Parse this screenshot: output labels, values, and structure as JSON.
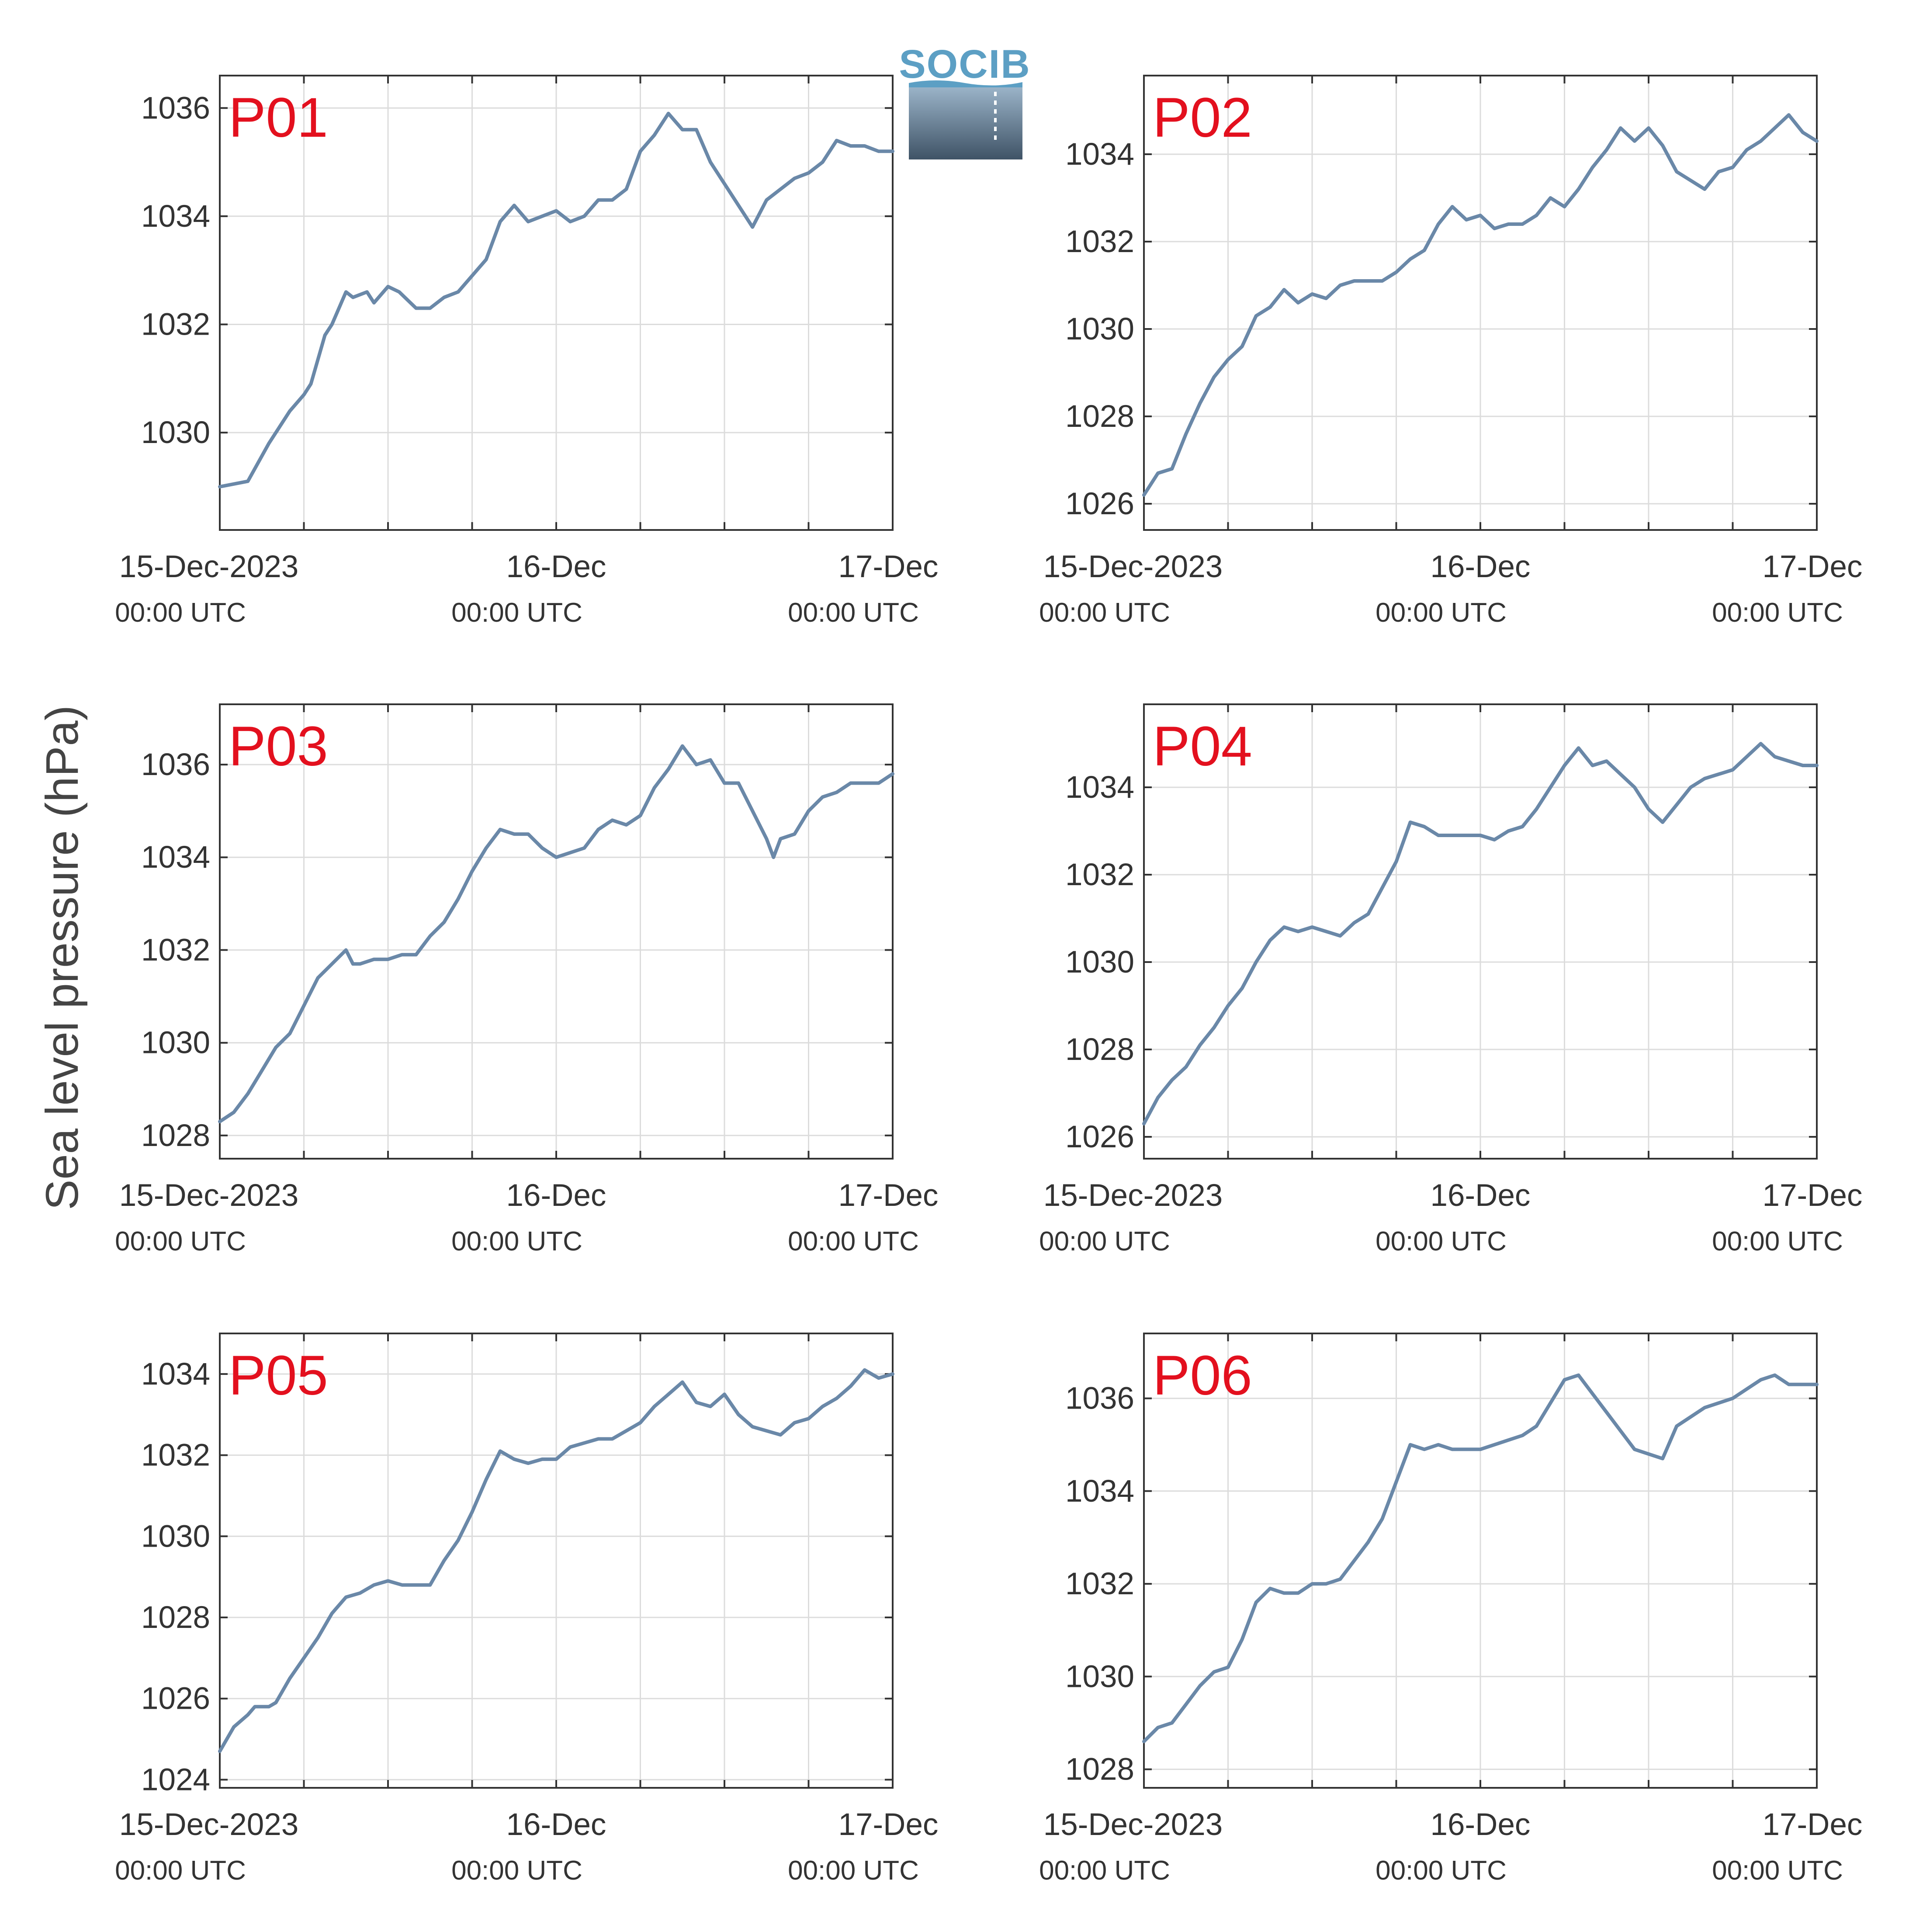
{
  "colors": {
    "series": "#6a88a8",
    "panel_label": "#e3101e",
    "grid": "#dcdcdc",
    "axis": "#333333",
    "logo": "#5c9fc4"
  },
  "logo": {
    "text": "SOCIB",
    "icon": "socib-logo-icon"
  },
  "figure": {
    "ylabel": "Sea level pressure (hPa)"
  },
  "x_axis": {
    "ticks": [
      {
        "date": "15-Dec-2023",
        "time": "00:00 UTC",
        "hours": 0
      },
      {
        "date": "16-Dec",
        "time": "00:00 UTC",
        "hours": 24
      },
      {
        "date": "17-Dec",
        "time": "00:00 UTC",
        "hours": 48
      }
    ]
  },
  "chart_data": [
    {
      "type": "line",
      "label": "P01",
      "ylim": [
        1028.2,
        1036.6
      ],
      "yticks": [
        1030,
        1032,
        1034,
        1036
      ],
      "grid": true,
      "x_unit": "hours since 15-Dec-2023 00:00 UTC",
      "x": [
        0,
        2,
        3.5,
        5,
        6,
        6.5,
        7.5,
        8,
        9,
        9.5,
        10.5,
        11,
        12,
        12.8,
        13.2,
        14,
        15,
        16,
        17,
        19,
        20,
        21,
        22,
        23,
        24,
        25,
        26,
        27,
        28,
        29,
        30,
        31,
        32,
        33,
        34,
        35,
        36,
        37,
        38,
        39,
        40,
        40.5,
        41,
        42,
        43,
        44,
        45,
        46,
        47,
        47.5,
        48
      ],
      "y": [
        1029.0,
        1029.1,
        1029.8,
        1030.4,
        1030.7,
        1030.9,
        1031.8,
        1032.0,
        1032.6,
        1032.5,
        1032.6,
        1032.4,
        1032.7,
        1032.6,
        1032.5,
        1032.3,
        1032.3,
        1032.5,
        1032.6,
        1033.2,
        1033.9,
        1034.2,
        1033.9,
        1034.0,
        1034.1,
        1033.9,
        1034.0,
        1034.3,
        1034.3,
        1034.5,
        1035.2,
        1035.5,
        1035.9,
        1035.6,
        1035.6,
        1035.0,
        1034.6,
        1034.2,
        1033.8,
        1034.3,
        1034.5,
        1034.6,
        1034.7,
        1034.8,
        1035.0,
        1035.4,
        1035.3,
        1035.3,
        1035.2,
        1035.2,
        1035.2
      ]
    },
    {
      "type": "line",
      "label": "P02",
      "ylim": [
        1025.4,
        1035.8
      ],
      "yticks": [
        1026,
        1028,
        1030,
        1032,
        1034
      ],
      "grid": true,
      "x_unit": "hours since 15-Dec-2023 00:00 UTC",
      "x": [
        0,
        1,
        2,
        3,
        4,
        5,
        6,
        7,
        8,
        9,
        10,
        11,
        12,
        13,
        14,
        15,
        16,
        17,
        18,
        19,
        20,
        21,
        22,
        23,
        24,
        25,
        26,
        27,
        28,
        29,
        30,
        31,
        32,
        33,
        34,
        35,
        36,
        37,
        38,
        39,
        40,
        41,
        42,
        43,
        44,
        45,
        46,
        47,
        48
      ],
      "y": [
        1026.2,
        1026.7,
        1026.8,
        1027.6,
        1028.3,
        1028.9,
        1029.3,
        1029.6,
        1030.3,
        1030.5,
        1030.9,
        1030.6,
        1030.8,
        1030.7,
        1031.0,
        1031.1,
        1031.1,
        1031.1,
        1031.3,
        1031.6,
        1031.8,
        1032.4,
        1032.8,
        1032.5,
        1032.6,
        1032.3,
        1032.4,
        1032.4,
        1032.6,
        1033.0,
        1032.8,
        1033.2,
        1033.7,
        1034.1,
        1034.6,
        1034.3,
        1034.6,
        1034.2,
        1033.6,
        1033.4,
        1033.2,
        1033.6,
        1033.7,
        1034.1,
        1034.3,
        1034.6,
        1034.9,
        1034.5,
        1034.3
      ]
    },
    {
      "type": "line",
      "label": "P03",
      "ylim": [
        1027.5,
        1037.3
      ],
      "yticks": [
        1028,
        1030,
        1032,
        1034,
        1036
      ],
      "grid": true,
      "x_unit": "hours since 15-Dec-2023 00:00 UTC",
      "x": [
        0,
        1,
        2,
        3,
        4,
        5,
        6,
        7,
        8,
        9,
        9.5,
        10,
        11,
        12,
        13,
        14,
        15,
        16,
        17,
        18,
        19,
        20,
        21,
        22,
        23,
        24,
        25,
        26,
        27,
        28,
        29,
        30,
        31,
        32,
        33,
        34,
        35,
        36,
        37,
        38,
        39,
        39.5,
        40,
        41,
        42,
        43,
        44,
        45,
        46,
        47,
        48
      ],
      "y": [
        1028.3,
        1028.5,
        1028.9,
        1029.4,
        1029.9,
        1030.2,
        1030.8,
        1031.4,
        1031.7,
        1032.0,
        1031.7,
        1031.7,
        1031.8,
        1031.8,
        1031.9,
        1031.9,
        1032.3,
        1032.6,
        1033.1,
        1033.7,
        1034.2,
        1034.6,
        1034.5,
        1034.5,
        1034.2,
        1034.0,
        1034.1,
        1034.2,
        1034.6,
        1034.8,
        1034.7,
        1034.9,
        1035.5,
        1035.9,
        1036.4,
        1036.0,
        1036.1,
        1035.6,
        1035.6,
        1035.0,
        1034.4,
        1034.0,
        1034.4,
        1034.5,
        1035.0,
        1035.3,
        1035.4,
        1035.6,
        1035.6,
        1035.6,
        1035.8
      ]
    },
    {
      "type": "line",
      "label": "P04",
      "ylim": [
        1025.5,
        1035.9
      ],
      "yticks": [
        1026,
        1028,
        1030,
        1032,
        1034
      ],
      "grid": true,
      "x_unit": "hours since 15-Dec-2023 00:00 UTC",
      "x": [
        0,
        1,
        2,
        3,
        4,
        5,
        6,
        7,
        8,
        9,
        10,
        11,
        12,
        13,
        14,
        15,
        16,
        17,
        18,
        19,
        20,
        21,
        22,
        23,
        24,
        25,
        26,
        27,
        28,
        29,
        30,
        31,
        32,
        33,
        34,
        35,
        36,
        37,
        38,
        39,
        40,
        41,
        42,
        43,
        44,
        45,
        46,
        47,
        48
      ],
      "y": [
        1026.3,
        1026.9,
        1027.3,
        1027.6,
        1028.1,
        1028.5,
        1029.0,
        1029.4,
        1030.0,
        1030.5,
        1030.8,
        1030.7,
        1030.8,
        1030.7,
        1030.6,
        1030.9,
        1031.1,
        1031.7,
        1032.3,
        1033.2,
        1033.1,
        1032.9,
        1032.9,
        1032.9,
        1032.9,
        1032.8,
        1033.0,
        1033.1,
        1033.5,
        1034.0,
        1034.5,
        1034.9,
        1034.5,
        1034.6,
        1034.3,
        1034.0,
        1033.5,
        1033.2,
        1033.6,
        1034.0,
        1034.2,
        1034.3,
        1034.4,
        1034.7,
        1035.0,
        1034.7,
        1034.6,
        1034.5,
        1034.5
      ]
    },
    {
      "type": "line",
      "label": "P05",
      "ylim": [
        1023.8,
        1035.0
      ],
      "yticks": [
        1024,
        1026,
        1028,
        1030,
        1032,
        1034
      ],
      "grid": true,
      "x_unit": "hours since 15-Dec-2023 00:00 UTC",
      "x": [
        0,
        1,
        2,
        2.5,
        3,
        3.5,
        4,
        5,
        6,
        7,
        8,
        9,
        10,
        11,
        12,
        13,
        14,
        15,
        16,
        17,
        18,
        19,
        20,
        21,
        22,
        23,
        24,
        25,
        26,
        27,
        28,
        29,
        30,
        31,
        32,
        33,
        34,
        35,
        36,
        37,
        38,
        39,
        40,
        41,
        42,
        43,
        44,
        45,
        46,
        47,
        48
      ],
      "y": [
        1024.7,
        1025.3,
        1025.6,
        1025.8,
        1025.8,
        1025.8,
        1025.9,
        1026.5,
        1027.0,
        1027.5,
        1028.1,
        1028.5,
        1028.6,
        1028.8,
        1028.9,
        1028.8,
        1028.8,
        1028.8,
        1029.4,
        1029.9,
        1030.6,
        1031.4,
        1032.1,
        1031.9,
        1031.8,
        1031.9,
        1031.9,
        1032.2,
        1032.3,
        1032.4,
        1032.4,
        1032.6,
        1032.8,
        1033.2,
        1033.5,
        1033.8,
        1033.3,
        1033.2,
        1033.5,
        1033.0,
        1032.7,
        1032.6,
        1032.5,
        1032.8,
        1032.9,
        1033.2,
        1033.4,
        1033.7,
        1034.1,
        1033.9,
        1034.0
      ]
    },
    {
      "type": "line",
      "label": "P06",
      "ylim": [
        1027.6,
        1037.4
      ],
      "yticks": [
        1028,
        1030,
        1032,
        1034,
        1036
      ],
      "grid": true,
      "x_unit": "hours since 15-Dec-2023 00:00 UTC",
      "x": [
        0,
        1,
        2,
        3,
        4,
        5,
        6,
        7,
        8,
        9,
        10,
        11,
        12,
        13,
        14,
        15,
        16,
        17,
        18,
        19,
        20,
        21,
        22,
        23,
        24,
        25,
        26,
        27,
        28,
        29,
        30,
        31,
        32,
        33,
        34,
        35,
        36,
        37,
        38,
        39,
        40,
        41,
        42,
        43,
        44,
        45,
        46,
        47,
        48
      ],
      "y": [
        1028.6,
        1028.9,
        1029.0,
        1029.4,
        1029.8,
        1030.1,
        1030.2,
        1030.8,
        1031.6,
        1031.9,
        1031.8,
        1031.8,
        1032.0,
        1032.0,
        1032.1,
        1032.5,
        1032.9,
        1033.4,
        1034.2,
        1035.0,
        1034.9,
        1035.0,
        1034.9,
        1034.9,
        1034.9,
        1035.0,
        1035.1,
        1035.2,
        1035.4,
        1035.9,
        1036.4,
        1036.5,
        1036.1,
        1035.7,
        1035.3,
        1034.9,
        1034.8,
        1034.7,
        1035.4,
        1035.6,
        1035.8,
        1035.9,
        1036.0,
        1036.2,
        1036.4,
        1036.5,
        1036.3,
        1036.3,
        1036.3
      ]
    }
  ]
}
